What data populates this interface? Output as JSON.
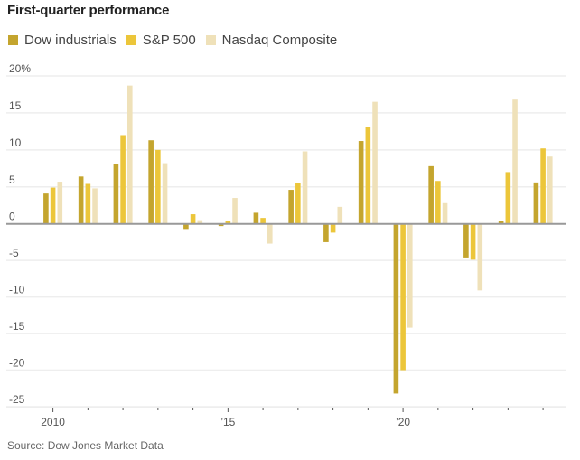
{
  "title": "First-quarter performance",
  "source": "Source: Dow Jones Market Data",
  "colors": {
    "dow": "#c4a52e",
    "sp500": "#ecc63a",
    "nasdaq": "#efe1b9"
  },
  "chart_data": {
    "type": "bar",
    "title": "First-quarter performance",
    "xlabel": "",
    "ylabel": "",
    "ylim": [
      -25,
      20
    ],
    "yticks": [
      20,
      15,
      10,
      5,
      0,
      -5,
      -10,
      -15,
      -20,
      -25
    ],
    "ytick_labels": [
      "20%",
      "15",
      "10",
      "5",
      "0",
      "-5",
      "-10",
      "-15",
      "-20",
      "-25"
    ],
    "xticks": [
      2010,
      2011,
      2012,
      2013,
      2014,
      2015,
      2016,
      2017,
      2018,
      2019,
      2020,
      2021,
      2022,
      2023,
      2024
    ],
    "xtick_labels": {
      "2010": "2010",
      "2015": "’15",
      "2020": "’20"
    },
    "grid": true,
    "legend_position": "top-left",
    "categories": [
      2010,
      2011,
      2012,
      2013,
      2014,
      2015,
      2016,
      2017,
      2018,
      2019,
      2020,
      2021,
      2022,
      2023,
      2024
    ],
    "series": [
      {
        "name": "Dow industrials",
        "key": "dow",
        "values": [
          4.1,
          6.4,
          8.1,
          11.3,
          -0.7,
          -0.3,
          1.5,
          4.6,
          -2.5,
          11.2,
          -23.2,
          7.8,
          -4.6,
          0.4,
          5.6
        ]
      },
      {
        "name": "S&P 500",
        "key": "sp500",
        "values": [
          4.9,
          5.4,
          12.0,
          10.0,
          1.3,
          0.4,
          0.8,
          5.5,
          -1.2,
          13.1,
          -20.0,
          5.8,
          -4.9,
          7.0,
          10.2
        ]
      },
      {
        "name": "Nasdaq Composite",
        "key": "nasdaq",
        "values": [
          5.7,
          4.8,
          18.7,
          8.2,
          0.5,
          3.5,
          -2.7,
          9.8,
          2.3,
          16.5,
          -14.2,
          2.8,
          -9.1,
          16.8,
          9.1
        ]
      }
    ]
  }
}
